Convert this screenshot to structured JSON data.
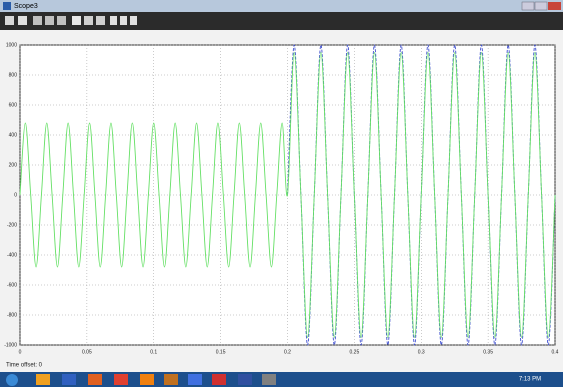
{
  "window": {
    "title": "Scope3"
  },
  "status": {
    "time_offset": "Time offset:  0"
  },
  "taskbar": {
    "time": "7:13 PM"
  },
  "chart_data": {
    "type": "line",
    "x": [
      0,
      0.004,
      0.008,
      0.012,
      0.016,
      0.02,
      0.024,
      0.028,
      0.032,
      0.036,
      0.04,
      0.044,
      0.048,
      0.052,
      0.056,
      0.06,
      0.064,
      0.068,
      0.072,
      0.076,
      0.08,
      0.084,
      0.088,
      0.092,
      0.096,
      0.1,
      0.104,
      0.108,
      0.112,
      0.116,
      0.12,
      0.124,
      0.128,
      0.132,
      0.136,
      0.14,
      0.144,
      0.148,
      0.152,
      0.156,
      0.16,
      0.164,
      0.168,
      0.172,
      0.176,
      0.18,
      0.184,
      0.188,
      0.192,
      0.196,
      0.2,
      0.205,
      0.21,
      0.215,
      0.22,
      0.225,
      0.23,
      0.235,
      0.24,
      0.245,
      0.25,
      0.255,
      0.26,
      0.265,
      0.27,
      0.275,
      0.28,
      0.285,
      0.29,
      0.295,
      0.3,
      0.305,
      0.31,
      0.315,
      0.32,
      0.325,
      0.33,
      0.335,
      0.34,
      0.345,
      0.35,
      0.355,
      0.36,
      0.365,
      0.37,
      0.375,
      0.38,
      0.385,
      0.39,
      0.395,
      0.4
    ],
    "series": [
      {
        "color": "#3f4fd0",
        "dashed": true,
        "values": [
          null,
          null,
          null,
          null,
          null,
          null,
          null,
          null,
          null,
          null,
          null,
          null,
          null,
          null,
          null,
          null,
          null,
          null,
          null,
          null,
          null,
          null,
          null,
          null,
          null,
          null,
          null,
          null,
          null,
          null,
          null,
          null,
          null,
          null,
          null,
          null,
          null,
          null,
          null,
          null,
          null,
          null,
          null,
          null,
          null,
          null,
          null,
          null,
          null,
          null,
          0,
          1000,
          0,
          -1000,
          0,
          1000,
          0,
          -1000,
          0,
          1000,
          0,
          -1000,
          0,
          1000,
          0,
          -1000,
          0,
          1000,
          0,
          -1000,
          0,
          1000,
          0,
          -1000,
          0,
          1000,
          0,
          -1000,
          0,
          1000,
          0,
          -1000,
          0,
          1000,
          0,
          -1000,
          0,
          1000,
          0,
          -1000,
          0
        ]
      },
      {
        "color": "#66e066",
        "dashed": false,
        "values": [
          0,
          480,
          0,
          -480,
          0,
          480,
          0,
          -480,
          0,
          480,
          0,
          -480,
          0,
          480,
          0,
          -480,
          0,
          480,
          0,
          -480,
          0,
          480,
          0,
          -480,
          0,
          480,
          0,
          -480,
          0,
          480,
          0,
          -480,
          0,
          480,
          0,
          -480,
          0,
          480,
          0,
          -480,
          0,
          480,
          0,
          -480,
          0,
          480,
          0,
          -480,
          0,
          480,
          0,
          950,
          0,
          -950,
          0,
          950,
          0,
          -950,
          0,
          950,
          0,
          -950,
          0,
          950,
          0,
          -950,
          0,
          950,
          0,
          -950,
          0,
          950,
          0,
          -950,
          0,
          950,
          0,
          -950,
          0,
          950,
          0,
          -950,
          0,
          950,
          0,
          -950,
          0,
          950,
          0,
          -950,
          0
        ]
      }
    ],
    "xlim": [
      0,
      0.4
    ],
    "xticks": [
      0,
      0.05,
      0.1,
      0.15,
      0.2,
      0.25,
      0.3,
      0.35,
      0.4
    ],
    "ylim": [
      -1000,
      1000
    ],
    "yticks": [
      -1000,
      -800,
      -600,
      -400,
      -200,
      0,
      200,
      400,
      600,
      800,
      1000
    ],
    "grid": true
  }
}
